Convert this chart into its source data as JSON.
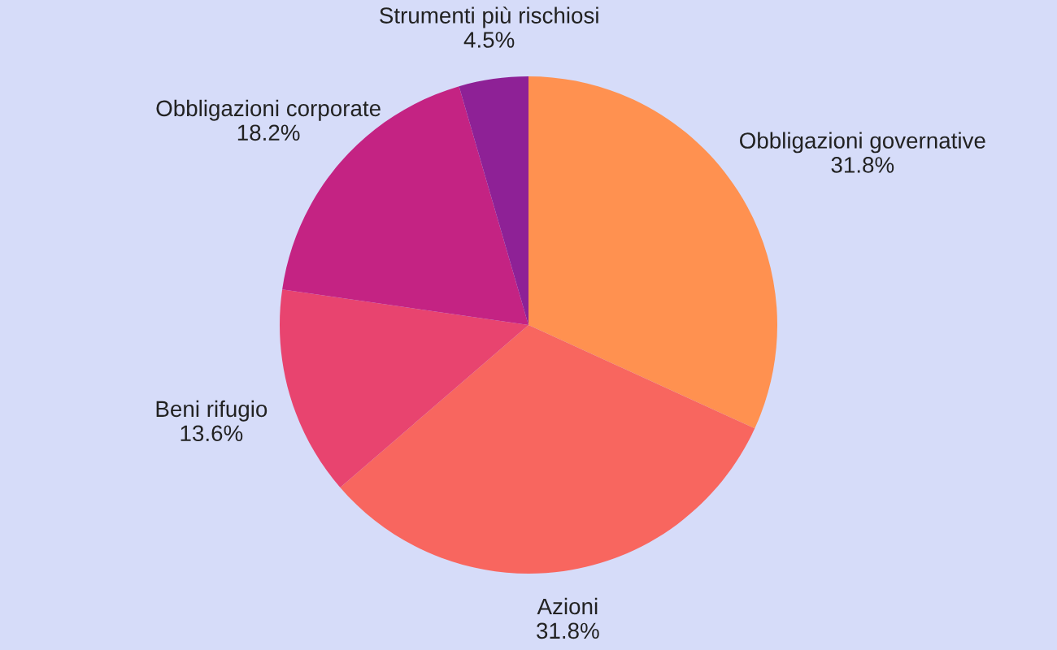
{
  "chart_data": {
    "type": "pie",
    "categories": [
      "Obbligazioni governative",
      "Azioni",
      "Beni rifugio",
      "Obbligazioni corporate",
      "Strumenti più rischiosi"
    ],
    "values": [
      31.8,
      31.8,
      13.6,
      18.2,
      4.5
    ],
    "value_labels": [
      "31.8%",
      "31.8%",
      "13.6%",
      "18.2%",
      "4.5%"
    ],
    "colors": [
      "#ff9150",
      "#f8665f",
      "#e8446f",
      "#c42383",
      "#8e2196"
    ]
  }
}
